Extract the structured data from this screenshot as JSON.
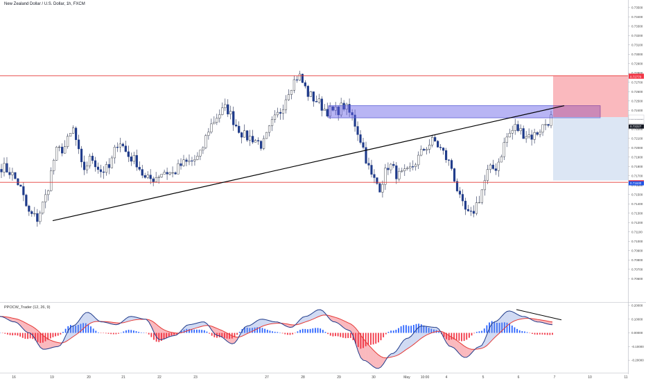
{
  "header": {
    "title": "New Zealand Dollar / U.S. Dollar, 1h, FXCM"
  },
  "indicator": {
    "title": "PPOCW_Trader (12, 26, 9)"
  },
  "chart_data": {
    "type": "candlestick",
    "ylim": [
      0.7035,
      0.7358
    ],
    "price_ticks": [
      "0.73500",
      "0.73400",
      "0.73300",
      "0.73200",
      "0.73100",
      "0.73000",
      "0.72900",
      "0.72800",
      "0.72700",
      "0.72600",
      "0.72500",
      "0.72400",
      "0.72300",
      "0.72200",
      "0.72100",
      "0.72000",
      "0.71900",
      "0.71800",
      "0.71700",
      "0.71600",
      "0.71500",
      "0.71400",
      "0.71300",
      "0.71200",
      "0.71100",
      "0.71000",
      "0.70900",
      "0.70800",
      "0.70700",
      "0.70600"
    ],
    "indicator_ticks": [
      "0.20000",
      "0.10000",
      "0.00000",
      "-0.10000",
      "-0.20000"
    ],
    "indicator_ylim": [
      -0.25,
      0.22
    ],
    "x_labels": [
      "16",
      "19",
      "20",
      "21",
      "22",
      "23",
      "27",
      "28",
      "29",
      "30",
      "May",
      "10:00",
      "4",
      "5",
      "6",
      "7",
      "10",
      "11"
    ],
    "price_tags": [
      {
        "label": "0.72770",
        "value": 0.7277,
        "color": "#f23645"
      },
      {
        "label": "0.72770",
        "value": 0.7276,
        "color": "#f23645"
      },
      {
        "label": "0.72328",
        "value": 0.72328,
        "color": "#ffffff",
        "text_color": "#131722"
      },
      {
        "label": "23:38",
        "value": 0.72278,
        "color": "#ffffff",
        "text_color": "#131722"
      },
      {
        "label": "0.72227",
        "value": 0.72227,
        "color": "#131722"
      },
      {
        "label": "0.71630",
        "value": 0.7163,
        "color": "#f23645"
      },
      {
        "label": "0.71630",
        "value": 0.7162,
        "color": "#1e53e5"
      }
    ],
    "levels": {
      "resistance": 0.7277,
      "support": 0.7163,
      "zone_top": 0.7245,
      "zone_bottom": 0.7232
    },
    "trendline": [
      [
        0,
        0.7122
      ],
      [
        1,
        0.7245
      ]
    ],
    "position": {
      "target": 0.7277,
      "entry": 0.72328,
      "stop": 0.7165
    },
    "close_anchors": [
      0.718,
      0.7174,
      0.716,
      0.713,
      0.7124,
      0.715,
      0.7195,
      0.72,
      0.722,
      0.7175,
      0.719,
      0.7175,
      0.7178,
      0.721,
      0.7192,
      0.7185,
      0.7165,
      0.7168,
      0.7175,
      0.7172,
      0.7182,
      0.7185,
      0.719,
      0.722,
      0.7235,
      0.7243,
      0.7225,
      0.7212,
      0.721,
      0.7202,
      0.7225,
      0.724,
      0.7265,
      0.7278,
      0.7258,
      0.725,
      0.724,
      0.7238,
      0.7245,
      0.7232,
      0.7205,
      0.717,
      0.7158,
      0.7183,
      0.717,
      0.7172,
      0.7185,
      0.72,
      0.7208,
      0.7195,
      0.7178,
      0.714,
      0.7125,
      0.7145,
      0.7175,
      0.718,
      0.721,
      0.7222,
      0.7215,
      0.7212,
      0.7222,
      0.7232
    ],
    "ppo_anchors": [
      0.12,
      0.08,
      0.0,
      -0.12,
      -0.1,
      0.05,
      0.15,
      0.08,
      0.06,
      0.12,
      0.1,
      -0.05,
      -0.02,
      0.06,
      0.08,
      -0.02,
      -0.08,
      0.05,
      0.1,
      0.08,
      0.04,
      0.12,
      0.17,
      0.08,
      0.02,
      -0.2,
      -0.26,
      -0.15,
      -0.04,
      0.05,
      0.04,
      -0.1,
      -0.18,
      -0.1,
      0.08,
      0.16,
      0.12,
      0.08,
      0.06
    ]
  }
}
